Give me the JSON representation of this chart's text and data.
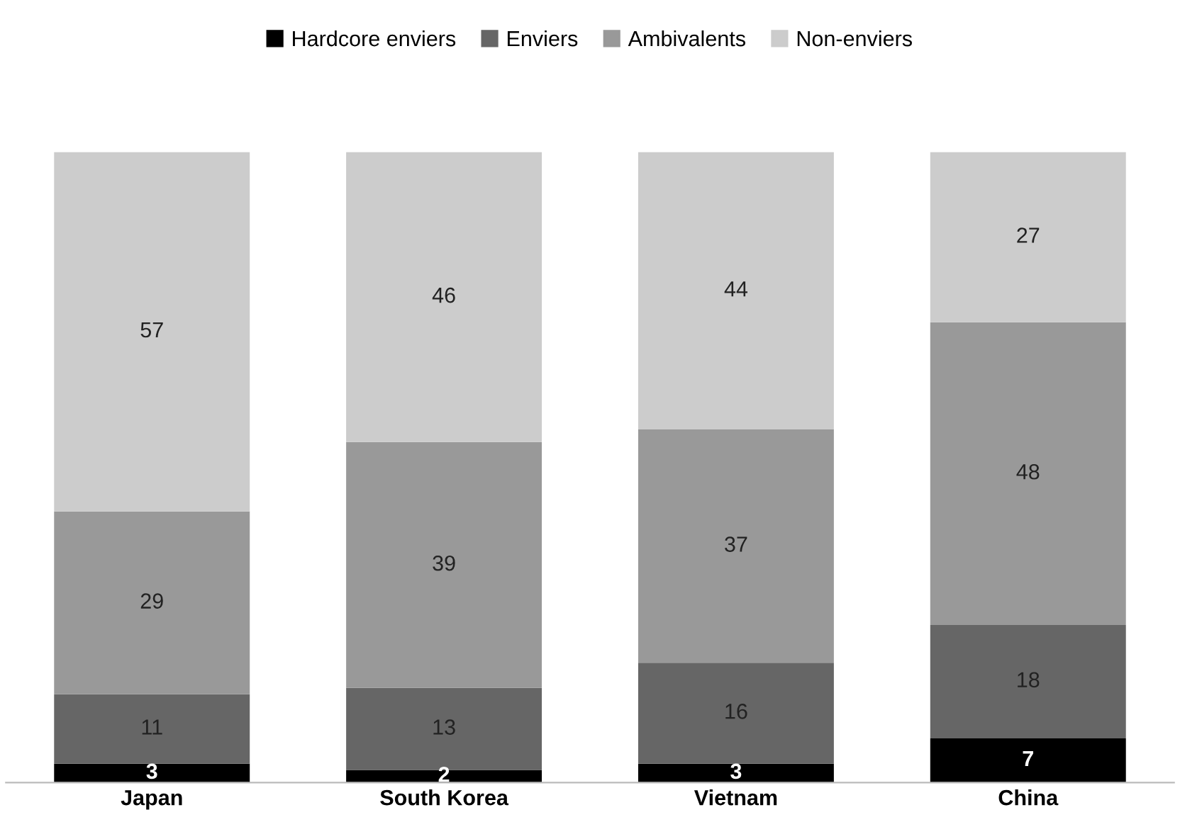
{
  "chart_data": {
    "type": "bar",
    "stacked": true,
    "categories": [
      "Japan",
      "South Korea",
      "Vietnam",
      "China"
    ],
    "series": [
      {
        "name": "Hardcore enviers",
        "color": "#000000",
        "values": [
          3,
          2,
          3,
          7
        ]
      },
      {
        "name": "Enviers",
        "color": "#666666",
        "values": [
          11,
          13,
          16,
          18
        ]
      },
      {
        "name": "Ambivalents",
        "color": "#999999",
        "values": [
          29,
          39,
          37,
          48
        ]
      },
      {
        "name": "Non-enviers",
        "color": "#cccccc",
        "values": [
          57,
          46,
          44,
          27
        ]
      }
    ],
    "data_labels": true,
    "legend": "top",
    "grid": false
  }
}
